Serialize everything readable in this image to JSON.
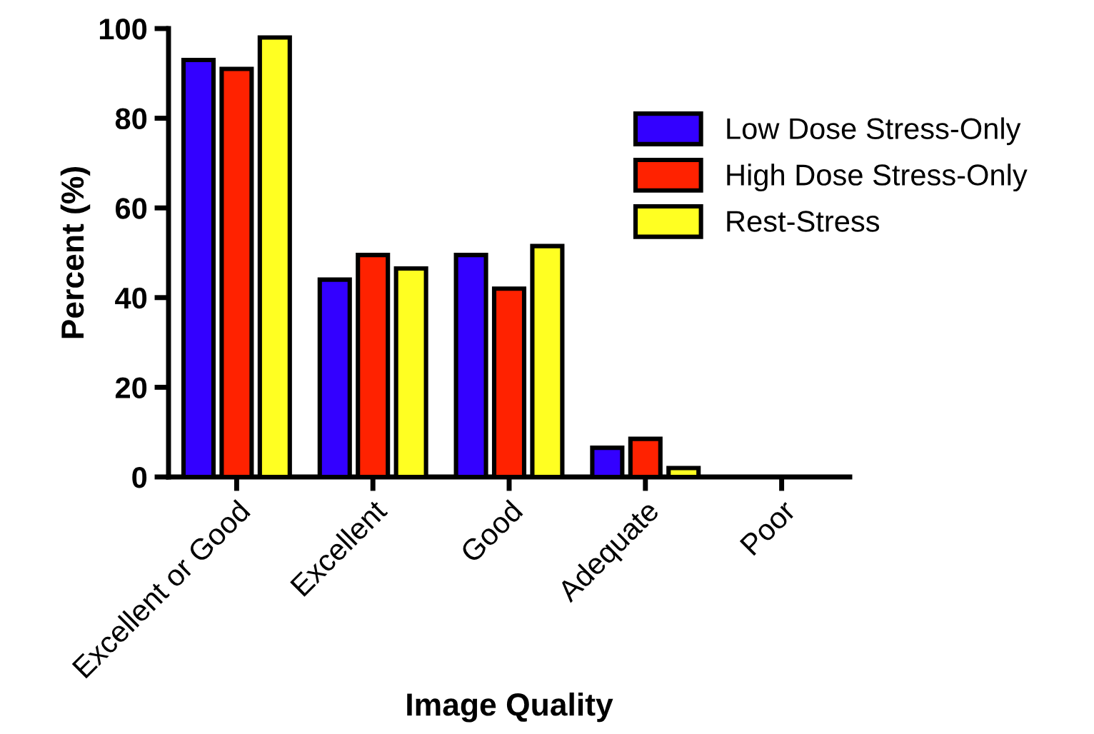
{
  "chart_data": {
    "type": "bar",
    "xlabel": "Image Quality",
    "ylabel": "Percent (%)",
    "categories": [
      "Excellent or Good",
      "Excellent",
      "Good",
      "Adequate",
      "Poor"
    ],
    "series": [
      {
        "name": "Low Dose Stress-Only",
        "color": "#3300ff",
        "values": [
          93,
          44,
          49.5,
          6.5,
          0
        ]
      },
      {
        "name": "High Dose Stress-Only",
        "color": "#ff2200",
        "values": [
          91,
          49.5,
          42,
          8.5,
          0
        ]
      },
      {
        "name": "Rest-Stress",
        "color": "#ffff22",
        "values": [
          98,
          46.5,
          51.5,
          2,
          0
        ]
      }
    ],
    "ylim": [
      0,
      100
    ],
    "yticks": [
      0,
      20,
      40,
      60,
      80,
      100
    ],
    "grid": false,
    "legend": "top right"
  }
}
